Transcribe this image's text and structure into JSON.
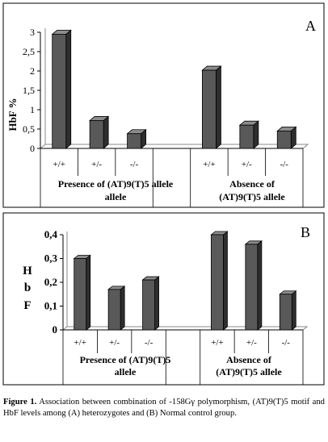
{
  "chart_data": [
    {
      "panel": "A",
      "type": "bar",
      "ylabel": "HbF %",
      "ylim": [
        0,
        3
      ],
      "yticks": [
        "0",
        "0,5",
        "1",
        "1,5",
        "2",
        "2,5",
        "3"
      ],
      "categories": [
        "+/+",
        "+/-",
        "-/-",
        "",
        "+/+",
        "+/-",
        "-/-"
      ],
      "values": [
        2.95,
        0.72,
        0.38,
        null,
        2.02,
        0.6,
        0.45
      ],
      "groups": [
        "Presence of (AT)9(T)5 allele",
        "Absence of (AT)9(T)5 allele"
      ],
      "grid": false,
      "legend": "none"
    },
    {
      "panel": "B",
      "type": "bar",
      "ylabel": "H b F",
      "ylim": [
        0,
        0.4
      ],
      "yticks": [
        "0",
        "0,1",
        "0,2",
        "0,3",
        "0,4"
      ],
      "categories": [
        "+/+",
        "+/-",
        "-/-",
        "",
        "+/+",
        "+/-",
        "-/-"
      ],
      "values": [
        0.3,
        0.17,
        0.21,
        null,
        0.4,
        0.36,
        0.15
      ],
      "groups": [
        "Presence of (AT)9(T)5 allele",
        "Absence of (AT)9(T)5 allele"
      ],
      "grid": false,
      "legend": "none"
    }
  ],
  "colors": {
    "bar_front": "#595959",
    "bar_side": "#2e2e2e",
    "bar_top": "#8c8c8c"
  },
  "caption": {
    "label": "Figure 1.",
    "text": "Association between combination of -158Gγ polymorphism, (AT)9(T)5 motif and HbF levels among (A) heterozygotes and (B) Normal control group."
  }
}
